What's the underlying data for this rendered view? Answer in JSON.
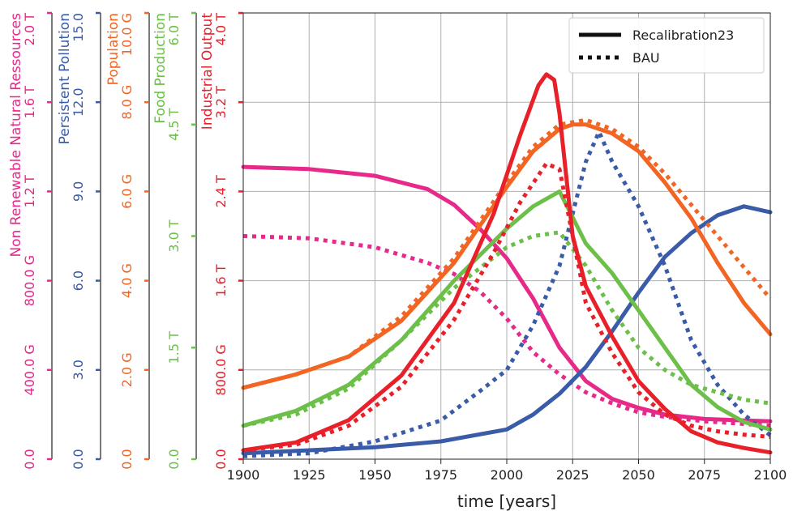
{
  "chart_data": {
    "type": "line",
    "xlabel": "time [years]",
    "xlim": [
      1900,
      2100
    ],
    "x_ticks": [
      "1900",
      "1925",
      "1950",
      "1975",
      "2000",
      "2025",
      "2050",
      "2075",
      "2100"
    ],
    "grid": true,
    "legend_position": "top-right",
    "legend": [
      {
        "label": "Recalibration23",
        "style": "solid"
      },
      {
        "label": "BAU",
        "style": "dotted"
      }
    ],
    "axes": [
      {
        "key": "nrr",
        "title": "Non Renewable Natural Ressources",
        "color": "#e7298a",
        "ylim": [
          0,
          2.0
        ],
        "tick_labels": [
          "0.0",
          "400.0 G",
          "800.0 G",
          "1.2 T",
          "1.6 T",
          "2.0 T"
        ]
      },
      {
        "key": "pollution",
        "title": "Persistent Pollution",
        "color": "#3a5ba8",
        "ylim": [
          0,
          15.0
        ],
        "tick_labels": [
          "0.0",
          "3.0",
          "6.0",
          "9.0",
          "12.0",
          "15.0"
        ]
      },
      {
        "key": "population",
        "title": "Population",
        "color": "#f26522",
        "ylim": [
          0,
          10.0
        ],
        "tick_labels": [
          "0.0",
          "2.0 G",
          "4.0 G",
          "6.0 G",
          "8.0 G",
          "10.0 G"
        ]
      },
      {
        "key": "food",
        "title": "Food Production",
        "color": "#6cc04a",
        "ylim": [
          0,
          6.0
        ],
        "tick_labels": [
          "0.0",
          "1.5 T",
          "3.0 T",
          "4.5 T",
          "6.0 T"
        ]
      },
      {
        "key": "industry",
        "title": "Industrial Output",
        "color": "#e8202a",
        "ylim": [
          0,
          4.0
        ],
        "tick_labels": [
          "0.0",
          "800.0 G",
          "1.6 T",
          "2.4 T",
          "3.2 T",
          "4.0 T"
        ]
      }
    ],
    "series": [
      {
        "axis": "nrr",
        "style": "solid",
        "x": [
          1900,
          1925,
          1950,
          1970,
          1980,
          1990,
          2000,
          2010,
          2020,
          2030,
          2040,
          2050,
          2060,
          2075,
          2100
        ],
        "y": [
          1.31,
          1.3,
          1.27,
          1.21,
          1.14,
          1.03,
          0.9,
          0.72,
          0.5,
          0.35,
          0.27,
          0.23,
          0.2,
          0.18,
          0.17
        ]
      },
      {
        "axis": "nrr",
        "style": "dotted",
        "x": [
          1900,
          1925,
          1950,
          1970,
          1980,
          1990,
          2000,
          2010,
          2020,
          2030,
          2040,
          2050,
          2060,
          2075,
          2100
        ],
        "y": [
          1.0,
          0.99,
          0.95,
          0.88,
          0.83,
          0.75,
          0.63,
          0.48,
          0.38,
          0.3,
          0.25,
          0.21,
          0.19,
          0.17,
          0.15
        ]
      },
      {
        "axis": "pollution",
        "style": "solid",
        "x": [
          1900,
          1925,
          1950,
          1975,
          2000,
          2010,
          2020,
          2030,
          2040,
          2050,
          2060,
          2070,
          2080,
          2090,
          2100
        ],
        "y": [
          0.2,
          0.3,
          0.4,
          0.6,
          1.0,
          1.5,
          2.2,
          3.1,
          4.3,
          5.6,
          6.8,
          7.6,
          8.2,
          8.5,
          8.3
        ]
      },
      {
        "axis": "pollution",
        "style": "dotted",
        "x": [
          1900,
          1925,
          1950,
          1975,
          1990,
          2000,
          2010,
          2020,
          2030,
          2035,
          2040,
          2050,
          2060,
          2070,
          2080,
          2090,
          2100
        ],
        "y": [
          0.1,
          0.2,
          0.6,
          1.3,
          2.3,
          3.0,
          4.5,
          6.5,
          10.0,
          11.0,
          10.0,
          8.5,
          6.5,
          4.0,
          2.5,
          1.5,
          0.8
        ]
      },
      {
        "axis": "population",
        "style": "solid",
        "x": [
          1900,
          1920,
          1940,
          1960,
          1980,
          2000,
          2010,
          2020,
          2025,
          2030,
          2040,
          2050,
          2060,
          2070,
          2080,
          2090,
          2100
        ],
        "y": [
          1.6,
          1.9,
          2.3,
          3.1,
          4.4,
          6.1,
          6.9,
          7.4,
          7.5,
          7.5,
          7.3,
          6.9,
          6.2,
          5.4,
          4.4,
          3.5,
          2.8
        ]
      },
      {
        "axis": "population",
        "style": "dotted",
        "x": [
          1900,
          1920,
          1940,
          1960,
          1980,
          2000,
          2010,
          2020,
          2030,
          2040,
          2050,
          2060,
          2070,
          2080,
          2090,
          2100
        ],
        "y": [
          1.6,
          1.9,
          2.3,
          3.2,
          4.5,
          6.2,
          7.0,
          7.5,
          7.6,
          7.4,
          7.0,
          6.4,
          5.7,
          5.0,
          4.3,
          3.6
        ]
      },
      {
        "axis": "food",
        "style": "solid",
        "x": [
          1900,
          1920,
          1940,
          1960,
          1980,
          2000,
          2010,
          2020,
          2025,
          2030,
          2040,
          2050,
          2060,
          2070,
          2080,
          2090,
          2100
        ],
        "y": [
          0.45,
          0.65,
          1.0,
          1.6,
          2.4,
          3.1,
          3.4,
          3.6,
          3.25,
          2.9,
          2.5,
          2.0,
          1.5,
          1.0,
          0.7,
          0.5,
          0.4
        ]
      },
      {
        "axis": "food",
        "style": "dotted",
        "x": [
          1900,
          1920,
          1940,
          1960,
          1980,
          2000,
          2010,
          2020,
          2030,
          2040,
          2050,
          2060,
          2070,
          2080,
          2090,
          2100
        ],
        "y": [
          0.45,
          0.6,
          0.95,
          1.6,
          2.3,
          2.85,
          3.0,
          3.05,
          2.6,
          2.0,
          1.5,
          1.2,
          1.0,
          0.9,
          0.8,
          0.75
        ]
      },
      {
        "axis": "industry",
        "style": "solid",
        "x": [
          1900,
          1920,
          1940,
          1960,
          1980,
          1995,
          2005,
          2012,
          2015,
          2018,
          2020,
          2025,
          2030,
          2040,
          2050,
          2060,
          2070,
          2080,
          2090,
          2100
        ],
        "y": [
          0.08,
          0.15,
          0.35,
          0.75,
          1.4,
          2.2,
          2.9,
          3.35,
          3.45,
          3.4,
          3.1,
          2.0,
          1.55,
          1.1,
          0.7,
          0.45,
          0.25,
          0.15,
          0.1,
          0.06
        ]
      },
      {
        "axis": "industry",
        "style": "dotted",
        "x": [
          1900,
          1920,
          1940,
          1960,
          1980,
          1995,
          2005,
          2015,
          2020,
          2025,
          2030,
          2040,
          2050,
          2060,
          2070,
          2080,
          2090,
          2100
        ],
        "y": [
          0.08,
          0.13,
          0.3,
          0.65,
          1.25,
          1.85,
          2.3,
          2.65,
          2.6,
          2.0,
          1.4,
          0.95,
          0.6,
          0.4,
          0.3,
          0.25,
          0.22,
          0.2
        ]
      }
    ]
  }
}
